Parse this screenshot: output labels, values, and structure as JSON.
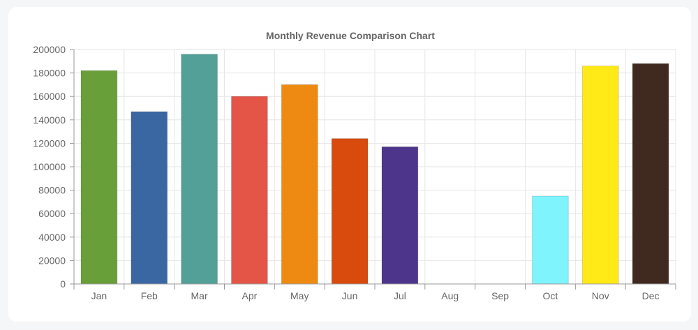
{
  "chart_data": {
    "type": "bar",
    "title": "Monthly Revenue Comparison Chart",
    "xlabel": "",
    "ylabel": "",
    "categories": [
      "Jan",
      "Feb",
      "Mar",
      "Apr",
      "May",
      "Jun",
      "Jul",
      "Aug",
      "Sep",
      "Oct",
      "Nov",
      "Dec"
    ],
    "values": [
      182000,
      147000,
      196000,
      160000,
      170000,
      124000,
      117000,
      0,
      0,
      75000,
      186000,
      188000
    ],
    "colors": [
      "#689f38",
      "#3a67a2",
      "#52a098",
      "#e45548",
      "#ee8a12",
      "#d94a0d",
      "#4e358c",
      "#9e9e9e",
      "#9e9e9e",
      "#80f4fd",
      "#ffea18",
      "#40291f"
    ],
    "ylim": [
      0,
      200000
    ],
    "yticks": [
      "200000",
      "180000",
      "160000",
      "140000",
      "120000",
      "100000",
      "80000",
      "60000",
      "40000",
      "20000",
      "0"
    ],
    "grid": true,
    "legend": "none"
  }
}
